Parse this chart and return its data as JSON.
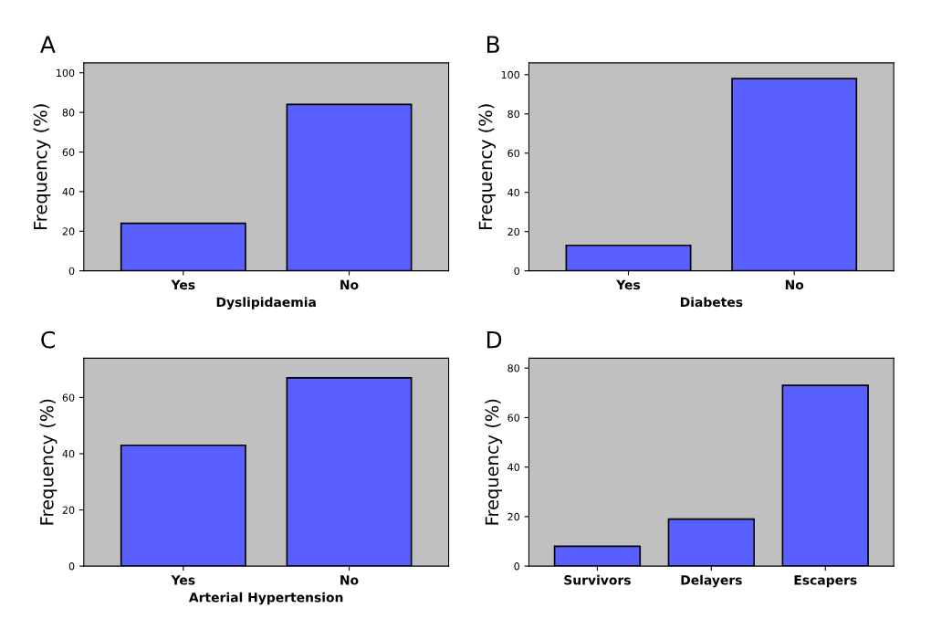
{
  "chart_data": [
    {
      "type": "bar",
      "title": "A",
      "xlabel": "Dyslipidaemia",
      "ylabel": "Frequency (%)",
      "categories": [
        "Yes",
        "No"
      ],
      "values": [
        24,
        84
      ],
      "color": "#5a5fff",
      "ylim": [
        0,
        105
      ],
      "yticks": [
        0,
        20,
        40,
        60,
        80,
        100
      ],
      "grid": false,
      "legend": false
    },
    {
      "type": "bar",
      "title": "B",
      "xlabel": "Diabetes",
      "ylabel": "Frequency (%)",
      "categories": [
        "Yes",
        "No"
      ],
      "values": [
        13,
        98
      ],
      "color": "#5a5fff",
      "ylim": [
        0,
        106
      ],
      "yticks": [
        0,
        20,
        40,
        60,
        80,
        100
      ],
      "grid": false,
      "legend": false
    },
    {
      "type": "bar",
      "title": "C",
      "xlabel": "Arterial Hypertension",
      "ylabel": "Frequency (%)",
      "categories": [
        "Yes",
        "No"
      ],
      "values": [
        43,
        67
      ],
      "color": "#5a5fff",
      "ylim": [
        0,
        74
      ],
      "yticks": [
        0,
        20,
        40,
        60
      ],
      "grid": false,
      "legend": false
    },
    {
      "type": "bar",
      "title": "D",
      "ylabel": "Frequency (%)",
      "categories": [
        "Survivors",
        "Delayers",
        "Escapers"
      ],
      "values": [
        8,
        19,
        73
      ],
      "color": "#5a5fff",
      "ylim": [
        0,
        84
      ],
      "yticks": [
        0,
        20,
        40,
        60,
        80
      ],
      "grid": false,
      "legend": false
    }
  ]
}
